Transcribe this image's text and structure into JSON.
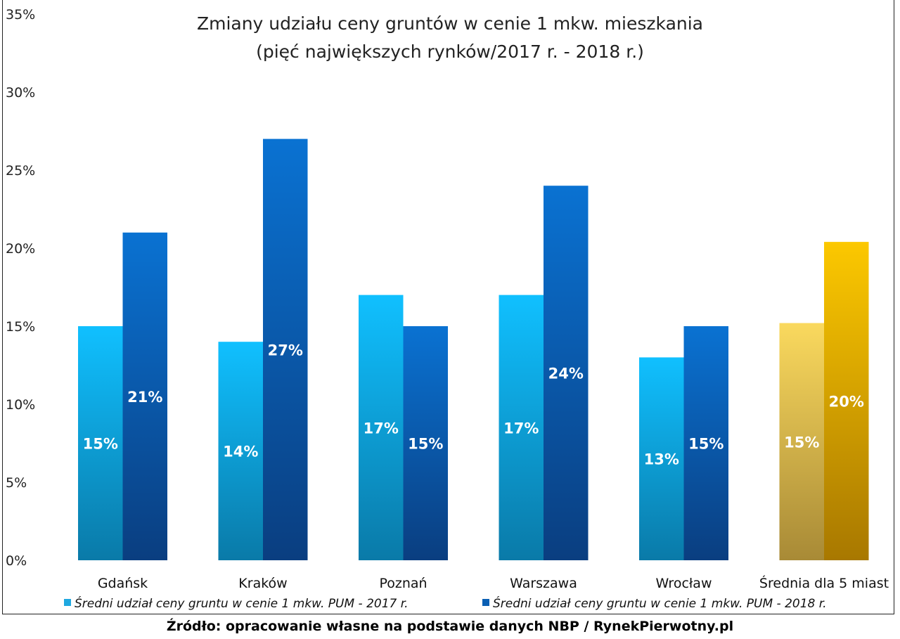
{
  "chart_data": {
    "type": "bar",
    "title": "Zmiany udziału ceny gruntów w cenie 1 mkw. mieszkania",
    "subtitle": "(pięć największych rynków/2017 r. - 2018 r.)",
    "categories": [
      "Gdańsk",
      "Kraków",
      "Poznań",
      "Warszawa",
      "Wrocław",
      "Średnia dla 5 miast"
    ],
    "series": [
      {
        "name": "Średni udział ceny gruntu w cenie 1 mkw. PUM - 2017 r.",
        "values": [
          15,
          14,
          17,
          17,
          13,
          15.2
        ],
        "labels": [
          "15%",
          "14%",
          "17%",
          "17%",
          "13%",
          "15%"
        ],
        "color": "#1fb8f0"
      },
      {
        "name": "Średni udział ceny gruntu w cenie 1 mkw. PUM - 2018 r.",
        "values": [
          21,
          27,
          15,
          24,
          15,
          20.4
        ],
        "labels": [
          "21%",
          "27%",
          "15%",
          "24%",
          "15%",
          "20%"
        ],
        "color": "#0a6cc8"
      }
    ],
    "highlight_colors": {
      "2017": "#f7d65a",
      "2018": "#f5c400"
    },
    "yticks": [
      "0%",
      "5%",
      "10%",
      "15%",
      "20%",
      "25%",
      "30%",
      "35%"
    ],
    "ylim": [
      0,
      35
    ],
    "grid": false,
    "legend": "bottom",
    "xlabel": "",
    "ylabel": ""
  },
  "source": "Źródło: opracowanie własne na podstawie danych NBP / RynekPierwotny.pl"
}
